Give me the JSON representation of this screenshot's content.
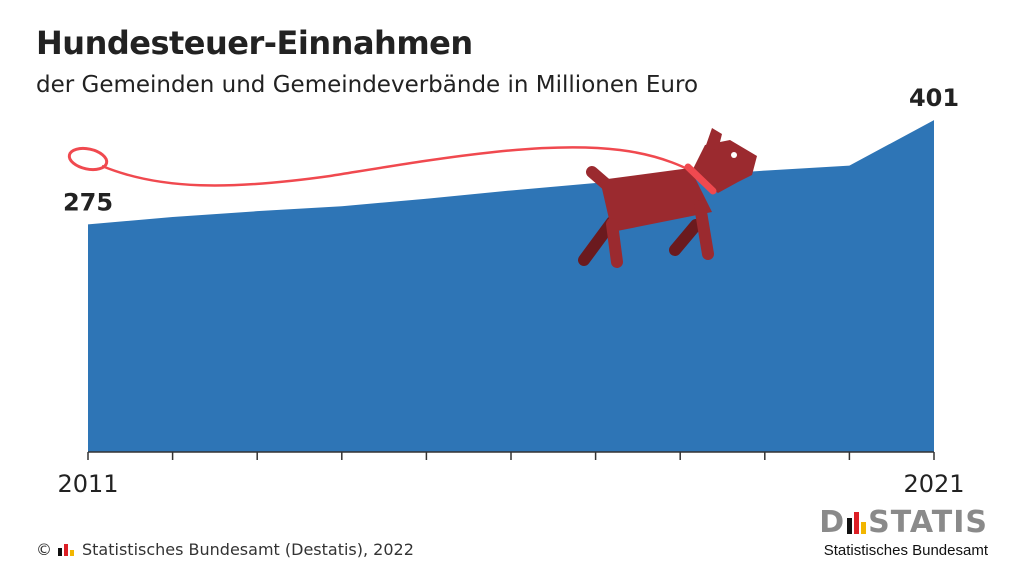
{
  "title": "Hundesteuer-Einnahmen",
  "subtitle": "der Gemeinden und Gemeindeverbände in Millionen Euro",
  "footer": {
    "copyright": "©",
    "source": "Statistisches Bundesamt (Destatis), 2022"
  },
  "brand": {
    "word_left": "D",
    "word_right": "STATIS",
    "sub": "Statistisches Bundesamt"
  },
  "colors": {
    "area": "#2e75b6",
    "dog": "#9b2a2f",
    "dog_dark": "#6b1a1e",
    "leash": "#f0494f",
    "flag_black": "#111111",
    "flag_red": "#dd1f26",
    "flag_gold": "#f2b600"
  },
  "chart_data": {
    "type": "area",
    "title": "Hundesteuer-Einnahmen",
    "subtitle": "der Gemeinden und Gemeindeverbände in Millionen Euro",
    "x": [
      2011,
      2012,
      2013,
      2014,
      2015,
      2016,
      2017,
      2018,
      2019,
      2020,
      2021
    ],
    "values": [
      275,
      284,
      291,
      297,
      306,
      316,
      325,
      333,
      340,
      346,
      401
    ],
    "xlim": [
      2011,
      2021
    ],
    "ylim": [
      0,
      435
    ],
    "x_tick_labels": [
      "2011",
      "2021"
    ],
    "data_labels": [
      {
        "x": 2011,
        "label": "275"
      },
      {
        "x": 2021,
        "label": "401"
      }
    ],
    "grid": false,
    "legend": "none"
  }
}
